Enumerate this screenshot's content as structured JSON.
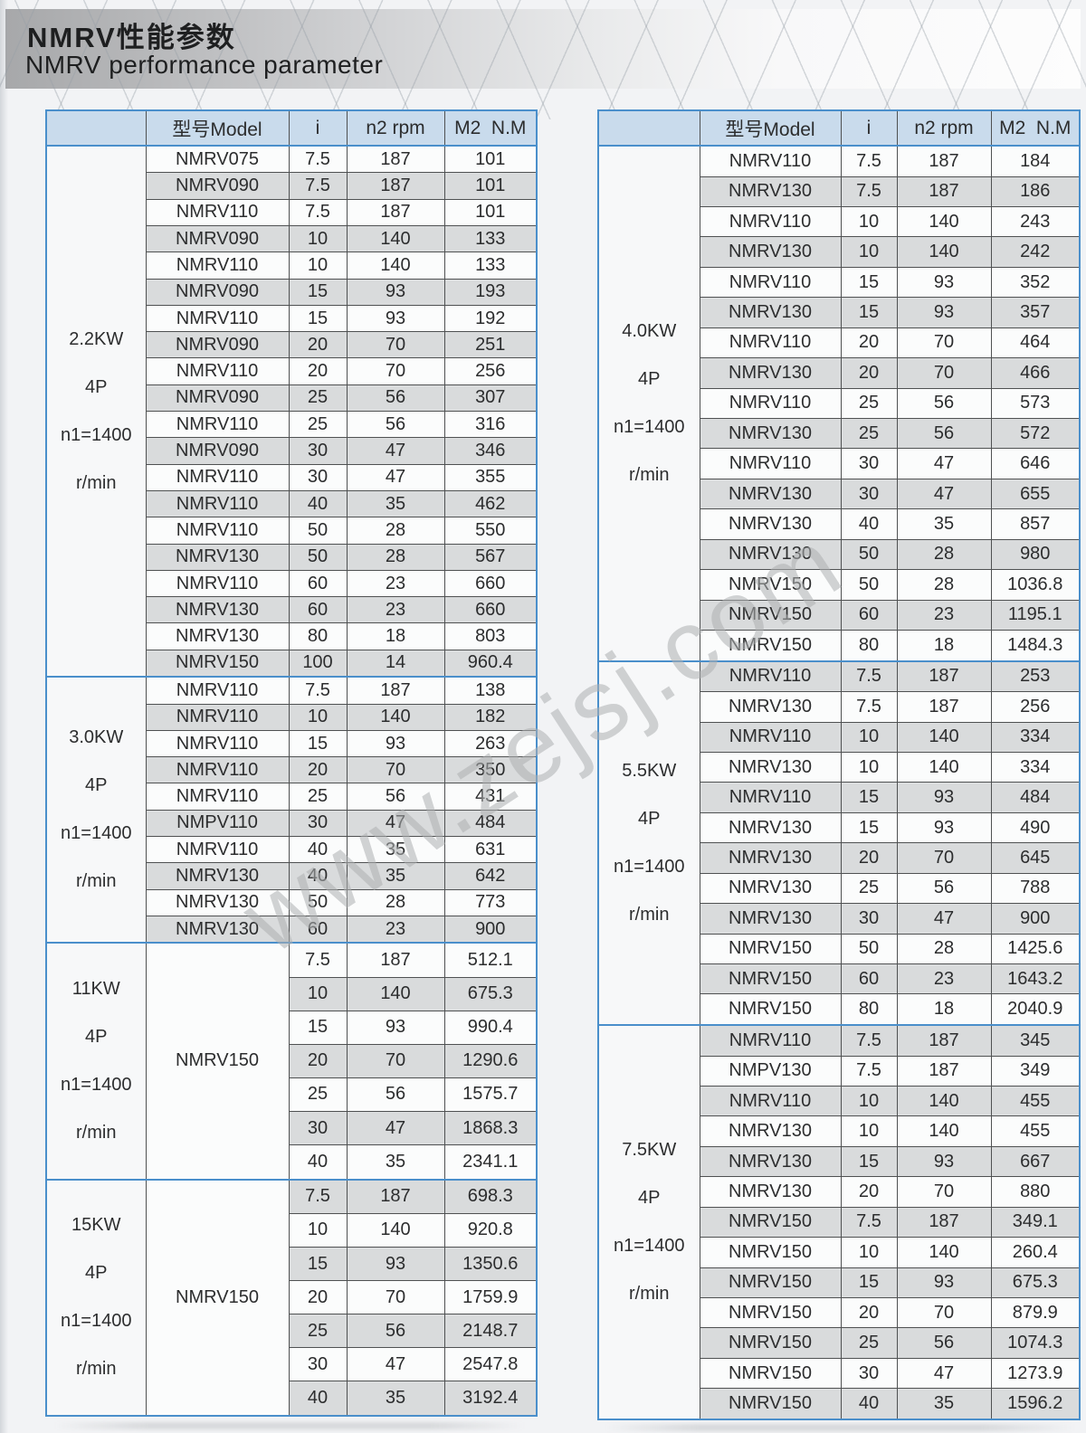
{
  "header": {
    "title_cn": "NMRV性能参数",
    "title_en": "NMRV performance parameter"
  },
  "watermark": {
    "text": "www.zejsj.com"
  },
  "columns": {
    "model": "型号Model",
    "i": "i",
    "n2": "n2 rpm",
    "m2": "M2  N.M"
  },
  "colors": {
    "accent_blue": "#4a8fcb",
    "header_bg": "#c9dbec",
    "stripe_gray": "#d9dbdc"
  },
  "tables": [
    {
      "side": "left",
      "groups": [
        {
          "label_lines": [
            "2.2KW",
            "4P",
            "n1=1400",
            "r/min"
          ],
          "rows": [
            [
              "NMRV075",
              "7.5",
              "187",
              "101"
            ],
            [
              "NMRV090",
              "7.5",
              "187",
              "101"
            ],
            [
              "NMRV110",
              "7.5",
              "187",
              "101"
            ],
            [
              "NMRV090",
              "10",
              "140",
              "133"
            ],
            [
              "NMRV110",
              "10",
              "140",
              "133"
            ],
            [
              "NMRV090",
              "15",
              "93",
              "193"
            ],
            [
              "NMRV110",
              "15",
              "93",
              "192"
            ],
            [
              "NMRV090",
              "20",
              "70",
              "251"
            ],
            [
              "NMRV110",
              "20",
              "70",
              "256"
            ],
            [
              "NMRV090",
              "25",
              "56",
              "307"
            ],
            [
              "NMRV110",
              "25",
              "56",
              "316"
            ],
            [
              "NMRV090",
              "30",
              "47",
              "346"
            ],
            [
              "NMRV110",
              "30",
              "47",
              "355"
            ],
            [
              "NMRV110",
              "40",
              "35",
              "462"
            ],
            [
              "NMRV110",
              "50",
              "28",
              "550"
            ],
            [
              "NMRV130",
              "50",
              "28",
              "567"
            ],
            [
              "NMRV110",
              "60",
              "23",
              "660"
            ],
            [
              "NMRV130",
              "60",
              "23",
              "660"
            ],
            [
              "NMRV130",
              "80",
              "18",
              "803"
            ],
            [
              "NMRV150",
              "100",
              "14",
              "960.4"
            ]
          ]
        },
        {
          "label_lines": [
            "3.0KW",
            "4P",
            "n1=1400",
            "r/min"
          ],
          "rows": [
            [
              "NMRV110",
              "7.5",
              "187",
              "138"
            ],
            [
              "NMRV110",
              "10",
              "140",
              "182"
            ],
            [
              "NMRV110",
              "15",
              "93",
              "263"
            ],
            [
              "NMRV110",
              "20",
              "70",
              "350"
            ],
            [
              "NMRV110",
              "25",
              "56",
              "431"
            ],
            [
              "NMPV110",
              "30",
              "47",
              "484"
            ],
            [
              "NMRV110",
              "40",
              "35",
              "631"
            ],
            [
              "NMRV130",
              "40",
              "35",
              "642"
            ],
            [
              "NMRV130",
              "50",
              "28",
              "773"
            ],
            [
              "NMRV130",
              "60",
              "23",
              "900"
            ]
          ]
        },
        {
          "label_lines": [
            "11KW",
            "4P",
            "n1=1400",
            "r/min"
          ],
          "model": "NMRV150",
          "rows": [
            [
              "7.5",
              "187",
              "512.1"
            ],
            [
              "10",
              "140",
              "675.3"
            ],
            [
              "15",
              "93",
              "990.4"
            ],
            [
              "20",
              "70",
              "1290.6"
            ],
            [
              "25",
              "56",
              "1575.7"
            ],
            [
              "30",
              "47",
              "1868.3"
            ],
            [
              "40",
              "35",
              "2341.1"
            ]
          ]
        },
        {
          "label_lines": [
            "15KW",
            "4P",
            "n1=1400",
            "r/min"
          ],
          "model": "NMRV150",
          "rows": [
            [
              "7.5",
              "187",
              "698.3"
            ],
            [
              "10",
              "140",
              "920.8"
            ],
            [
              "15",
              "93",
              "1350.6"
            ],
            [
              "20",
              "70",
              "1759.9"
            ],
            [
              "25",
              "56",
              "2148.7"
            ],
            [
              "30",
              "47",
              "2547.8"
            ],
            [
              "40",
              "35",
              "3192.4"
            ]
          ]
        }
      ]
    },
    {
      "side": "right",
      "groups": [
        {
          "label_lines": [
            "4.0KW",
            "4P",
            "n1=1400",
            "r/min"
          ],
          "rows": [
            [
              "NMRV110",
              "7.5",
              "187",
              "184"
            ],
            [
              "NMRV130",
              "7.5",
              "187",
              "186"
            ],
            [
              "NMRV110",
              "10",
              "140",
              "243"
            ],
            [
              "NMRV130",
              "10",
              "140",
              "242"
            ],
            [
              "NMRV110",
              "15",
              "93",
              "352"
            ],
            [
              "NMRV130",
              "15",
              "93",
              "357"
            ],
            [
              "NMRV110",
              "20",
              "70",
              "464"
            ],
            [
              "NMRV130",
              "20",
              "70",
              "466"
            ],
            [
              "NMRV110",
              "25",
              "56",
              "573"
            ],
            [
              "NMRV130",
              "25",
              "56",
              "572"
            ],
            [
              "NMRV110",
              "30",
              "47",
              "646"
            ],
            [
              "NMRV130",
              "30",
              "47",
              "655"
            ],
            [
              "NMRV130",
              "40",
              "35",
              "857"
            ],
            [
              "NMRV130",
              "50",
              "28",
              "980"
            ],
            [
              "NMRV150",
              "50",
              "28",
              "1036.8"
            ],
            [
              "NMRV150",
              "60",
              "23",
              "1195.1"
            ],
            [
              "NMRV150",
              "80",
              "18",
              "1484.3"
            ]
          ]
        },
        {
          "label_lines": [
            "5.5KW",
            "4P",
            "n1=1400",
            "r/min"
          ],
          "rows": [
            [
              "NMRV110",
              "7.5",
              "187",
              "253"
            ],
            [
              "NMRV130",
              "7.5",
              "187",
              "256"
            ],
            [
              "NMRV110",
              "10",
              "140",
              "334"
            ],
            [
              "NMRV130",
              "10",
              "140",
              "334"
            ],
            [
              "NMRV110",
              "15",
              "93",
              "484"
            ],
            [
              "NMRV130",
              "15",
              "93",
              "490"
            ],
            [
              "NMRV130",
              "20",
              "70",
              "645"
            ],
            [
              "NMRV130",
              "25",
              "56",
              "788"
            ],
            [
              "NMRV130",
              "30",
              "47",
              "900"
            ],
            [
              "NMRV150",
              "50",
              "28",
              "1425.6"
            ],
            [
              "NMRV150",
              "60",
              "23",
              "1643.2"
            ],
            [
              "NMRV150",
              "80",
              "18",
              "2040.9"
            ]
          ]
        },
        {
          "label_lines": [
            "7.5KW",
            "4P",
            "n1=1400",
            "r/min"
          ],
          "rows": [
            [
              "NMRV110",
              "7.5",
              "187",
              "345"
            ],
            [
              "NMPV130",
              "7.5",
              "187",
              "349"
            ],
            [
              "NMRV110",
              "10",
              "140",
              "455"
            ],
            [
              "NMRV130",
              "10",
              "140",
              "455"
            ],
            [
              "NMRV130",
              "15",
              "93",
              "667"
            ],
            [
              "NMRV130",
              "20",
              "70",
              "880"
            ],
            [
              "NMRV150",
              "7.5",
              "187",
              "349.1"
            ],
            [
              "NMRV150",
              "10",
              "140",
              "260.4"
            ],
            [
              "NMRV150",
              "15",
              "93",
              "675.3"
            ],
            [
              "NMRV150",
              "20",
              "70",
              "879.9"
            ],
            [
              "NMRV150",
              "25",
              "56",
              "1074.3"
            ],
            [
              "NMRV150",
              "30",
              "47",
              "1273.9"
            ],
            [
              "NMRV150",
              "40",
              "35",
              "1596.2"
            ]
          ]
        }
      ]
    }
  ]
}
